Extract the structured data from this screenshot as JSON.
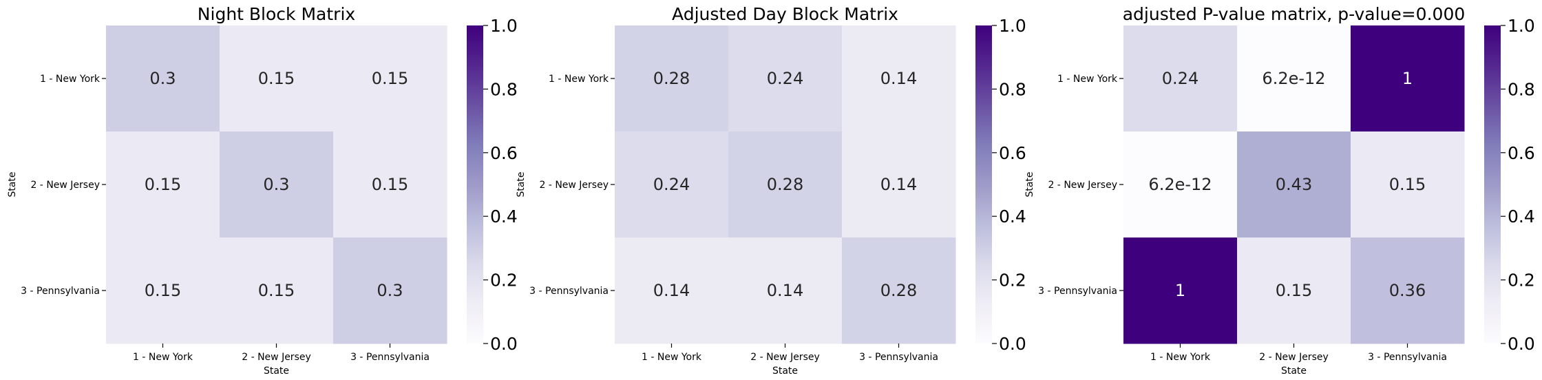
{
  "chart_data": [
    {
      "type": "heatmap",
      "title": "Night Block Matrix",
      "xlabel": "State",
      "ylabel": "State",
      "x_categories": [
        "1 - New York",
        "2 - New Jersey",
        "3 - Pennsylvania"
      ],
      "y_categories": [
        "1 - New York",
        "2 - New Jersey",
        "3 - Pennsylvania"
      ],
      "values": [
        [
          0.3,
          0.15,
          0.15
        ],
        [
          0.15,
          0.3,
          0.15
        ],
        [
          0.15,
          0.15,
          0.3
        ]
      ],
      "annotations": [
        [
          "0.3",
          "0.15",
          "0.15"
        ],
        [
          "0.15",
          "0.3",
          "0.15"
        ],
        [
          "0.15",
          "0.15",
          "0.3"
        ]
      ],
      "colorscale": "Purples",
      "vmin": 0,
      "vmax": 1,
      "colorbar_ticks": [
        "0.0",
        "0.2",
        "0.4",
        "0.6",
        "0.8",
        "1.0"
      ]
    },
    {
      "type": "heatmap",
      "title": "Adjusted Day Block Matrix",
      "xlabel": "State",
      "ylabel": "State",
      "x_categories": [
        "1 - New York",
        "2 - New Jersey",
        "3 - Pennsylvania"
      ],
      "y_categories": [
        "1 - New York",
        "2 - New Jersey",
        "3 - Pennsylvania"
      ],
      "values": [
        [
          0.28,
          0.24,
          0.14
        ],
        [
          0.24,
          0.28,
          0.14
        ],
        [
          0.14,
          0.14,
          0.28
        ]
      ],
      "annotations": [
        [
          "0.28",
          "0.24",
          "0.14"
        ],
        [
          "0.24",
          "0.28",
          "0.14"
        ],
        [
          "0.14",
          "0.14",
          "0.28"
        ]
      ],
      "colorscale": "Purples",
      "vmin": 0,
      "vmax": 1,
      "colorbar_ticks": [
        "0.0",
        "0.2",
        "0.4",
        "0.6",
        "0.8",
        "1.0"
      ]
    },
    {
      "type": "heatmap",
      "title": "adjusted P-value matrix, p-value=0.000",
      "xlabel": "State",
      "ylabel": "State",
      "x_categories": [
        "1 - New York",
        "2 - New Jersey",
        "3 - Pennsylvania"
      ],
      "y_categories": [
        "1 - New York",
        "2 - New Jersey",
        "3 - Pennsylvania"
      ],
      "values": [
        [
          0.24,
          6.2e-12,
          1
        ],
        [
          6.2e-12,
          0.43,
          0.15
        ],
        [
          1,
          0.15,
          0.36
        ]
      ],
      "annotations": [
        [
          "0.24",
          "6.2e-12",
          "1"
        ],
        [
          "6.2e-12",
          "0.43",
          "0.15"
        ],
        [
          "1",
          "0.15",
          "0.36"
        ]
      ],
      "colorscale": "Purples",
      "vmin": 0,
      "vmax": 1,
      "colorbar_ticks": [
        "0.0",
        "0.2",
        "0.4",
        "0.6",
        "0.8",
        "1.0"
      ]
    }
  ]
}
